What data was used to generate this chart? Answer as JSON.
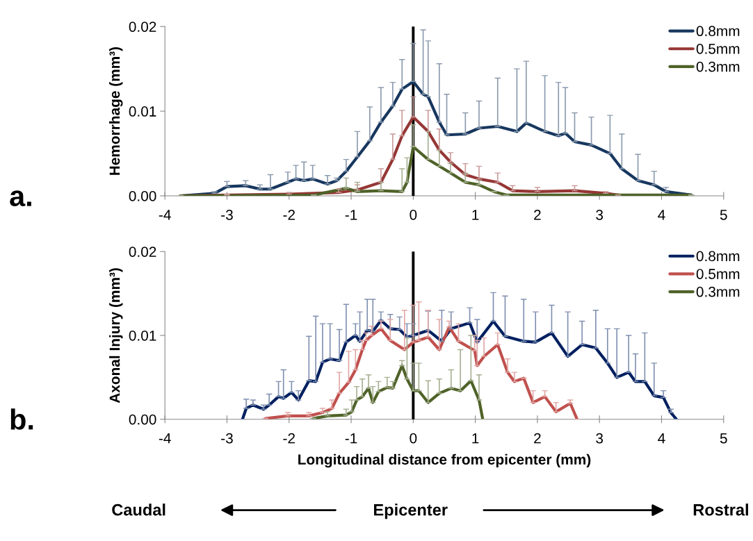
{
  "chart_data": [
    {
      "type": "line",
      "ylabel": "Hemorrhage (mm³)",
      "annotations": [
        "a."
      ],
      "legend": "top right",
      "grid": false,
      "marker": "none",
      "line_style": "solid",
      "xlim": [
        -4,
        5
      ],
      "xticks": [
        -4,
        -3,
        -2,
        -1,
        0,
        1,
        2,
        3,
        4,
        5
      ],
      "ylim": [
        0,
        0.02
      ],
      "yticks": [
        {
          "value": 0,
          "label": "0.00"
        },
        {
          "value": 0.01,
          "label": "0.01"
        },
        {
          "value": 0.02,
          "label": "0.02"
        }
      ],
      "ref_lines": [
        {
          "axis": "x",
          "value": 0,
          "label": null,
          "color": "#000000"
        }
      ],
      "series": [
        {
          "name": "0.8mm",
          "color": "#17375e",
          "x": [
            -3.75,
            -3.2,
            -3.0,
            -2.7,
            -2.47,
            -2.3,
            -2.02,
            -1.89,
            -1.76,
            -1.62,
            -1.38,
            -1.23,
            -1.08,
            -0.9,
            -0.7,
            -0.52,
            -0.33,
            -0.18,
            0,
            0.16,
            0.24,
            0.42,
            0.54,
            0.84,
            1.06,
            1.36,
            1.67,
            1.82,
            2.12,
            2.34,
            2.45,
            2.6,
            2.87,
            3.17,
            3.36,
            3.62,
            3.88,
            4.07,
            4.48
          ],
          "values": [
            0,
            0.0003,
            0.0011,
            0.0012,
            0.0008,
            0.0008,
            0.0016,
            0.002,
            0.0018,
            0.002,
            0.0014,
            0.0018,
            0.0029,
            0.0046,
            0.0065,
            0.0087,
            0.0106,
            0.0126,
            0.0135,
            0.012,
            0.0117,
            0.0087,
            0.0072,
            0.0073,
            0.008,
            0.0082,
            0.0076,
            0.0086,
            0.0076,
            0.0071,
            0.0074,
            0.0064,
            0.006,
            0.005,
            0.0032,
            0.0018,
            0.0013,
            0.0005,
            0.0001
          ],
          "errors": [
            [
              0,
              0
            ],
            [
              0.0003,
              0.0005
            ],
            [
              0.0011,
              0.0017
            ],
            [
              0.0012,
              0.0018
            ],
            [
              0.0008,
              0.0013
            ],
            [
              0.0008,
              0.0025
            ],
            [
              0.0016,
              0.0028
            ],
            [
              0.002,
              0.0036
            ],
            [
              0.0018,
              0.004
            ],
            [
              0.002,
              0.0036
            ],
            [
              0.0014,
              0.0024
            ],
            [
              0.0018,
              0.0021
            ],
            [
              0.0029,
              0.0043
            ],
            [
              0.0046,
              0.0076
            ],
            [
              0.0065,
              0.0105
            ],
            [
              0.0087,
              0.0128
            ],
            [
              0.0106,
              0.0134
            ],
            [
              0.0126,
              0.0161
            ],
            [
              0.0135,
              0.018
            ],
            [
              0.012,
              0.0196
            ],
            [
              0.0117,
              0.0183
            ],
            [
              0.0087,
              0.0156
            ],
            [
              0.0072,
              0.012
            ],
            [
              0.0073,
              0.0098
            ],
            [
              0.008,
              0.0112
            ],
            [
              0.0082,
              0.0139
            ],
            [
              0.0076,
              0.015
            ],
            [
              0.0086,
              0.0159
            ],
            [
              0.0076,
              0.0142
            ],
            [
              0.0071,
              0.0134
            ],
            [
              0.0074,
              0.0128
            ],
            [
              0.0064,
              0.0098
            ],
            [
              0.006,
              0.0093
            ],
            [
              0.005,
              0.0095
            ],
            [
              0.0032,
              0.0073
            ],
            [
              0.0018,
              0.0049
            ],
            [
              0.0013,
              0.0029
            ],
            [
              0.0005,
              0.001
            ],
            [
              0.0001,
              0.0001
            ]
          ]
        },
        {
          "name": "0.5mm",
          "color": "#953735",
          "x": [
            -3.75,
            -3.0,
            -2.0,
            -1.2,
            -0.9,
            -0.52,
            -0.33,
            -0.18,
            0,
            0.24,
            0.42,
            0.6,
            0.84,
            1.06,
            1.36,
            1.6,
            2.0,
            2.6,
            3.1,
            3.3
          ],
          "values": [
            0,
            0.0001,
            0.0002,
            0.0004,
            0.0007,
            0.0016,
            0.0043,
            0.0071,
            0.0093,
            0.0076,
            0.0054,
            0.004,
            0.0025,
            0.002,
            0.0016,
            0.0006,
            0.0005,
            0.0006,
            0.0003,
            0.0001
          ],
          "errors": [
            [
              0,
              0
            ],
            [
              0.0001,
              0.0002
            ],
            [
              0.0002,
              0.0004
            ],
            [
              0.0004,
              0.0008
            ],
            [
              0.0007,
              0.0013
            ],
            [
              0.0016,
              0.0032
            ],
            [
              0.0043,
              0.0073
            ],
            [
              0.0071,
              0.0101
            ],
            [
              0.0093,
              0.0117
            ],
            [
              0.0076,
              0.0101
            ],
            [
              0.0054,
              0.0079
            ],
            [
              0.004,
              0.0051
            ],
            [
              0.0025,
              0.0038
            ],
            [
              0.002,
              0.0035
            ],
            [
              0.0016,
              0.0027
            ],
            [
              0.0006,
              0.0012
            ],
            [
              0.0005,
              0.001
            ],
            [
              0.0006,
              0.0012
            ],
            [
              0.0003,
              0.0005
            ],
            [
              0.0001,
              0.0001
            ]
          ]
        },
        {
          "name": "0.3mm",
          "color": "#4f6228",
          "x": [
            -3.75,
            -1.6,
            -1.08,
            -0.9,
            -0.52,
            -0.18,
            -0.1,
            0,
            0.24,
            0.42,
            0.6,
            0.84,
            1.06,
            1.3,
            1.5,
            4.48
          ],
          "values": [
            0,
            0.0001,
            0.0009,
            0.0005,
            0.0006,
            0.0005,
            0.0016,
            0.0058,
            0.0043,
            0.0035,
            0.0027,
            0.0016,
            0.0013,
            0.0005,
            0.0001,
            0.0001
          ],
          "errors": [
            [
              0,
              0
            ],
            [
              0.0001,
              0.0001
            ],
            [
              0.0009,
              0.0021
            ],
            [
              0.0005,
              0.0016
            ],
            [
              0.0006,
              0.0016
            ],
            [
              0.0005,
              0.0032
            ],
            [
              0.0016,
              0.0045
            ],
            [
              0.0058,
              0.0084
            ],
            [
              0.0043,
              0.0076
            ],
            [
              0.0035,
              0.0054
            ],
            [
              0.0027,
              0.0038
            ],
            [
              0.0016,
              0.0027
            ],
            [
              0.0013,
              0.0018
            ],
            [
              0.0005,
              0.0005
            ],
            [
              0.0001,
              0.0001
            ],
            [
              0.0001,
              0.0001
            ]
          ]
        }
      ]
    },
    {
      "type": "line",
      "ylabel": "Axonal Injury (mm³)",
      "xlabel": "Longitudinal distance from epicenter (mm)",
      "annotations": [
        "b.",
        "Caudal",
        "Epicenter",
        "Rostral"
      ],
      "legend": "top right",
      "grid": false,
      "marker": "none",
      "line_style": "solid",
      "xlim": [
        -4,
        5
      ],
      "xticks": [
        -4,
        -3,
        -2,
        -1,
        0,
        1,
        2,
        3,
        4,
        5
      ],
      "ylim": [
        0,
        0.02
      ],
      "yticks": [
        {
          "value": 0,
          "label": "0.00"
        },
        {
          "value": 0.01,
          "label": "0.01"
        },
        {
          "value": 0.02,
          "label": "0.02"
        }
      ],
      "ref_lines": [
        {
          "axis": "x",
          "value": 0,
          "label": null,
          "color": "#000000"
        }
      ],
      "series": [
        {
          "name": "0.8mm",
          "color": "#002060",
          "x": [
            -2.75,
            -2.69,
            -2.58,
            -2.41,
            -2.32,
            -2.17,
            -2.09,
            -1.96,
            -1.85,
            -1.68,
            -1.57,
            -1.46,
            -1.34,
            -1.19,
            -1.08,
            -0.93,
            -0.86,
            -0.74,
            -0.65,
            -0.52,
            -0.37,
            -0.22,
            -0.1,
            0,
            0.24,
            0.46,
            0.61,
            0.91,
            1.03,
            1.29,
            1.48,
            1.78,
            1.97,
            2.23,
            2.49,
            2.72,
            2.94,
            3.13,
            3.28,
            3.47,
            3.58,
            3.73,
            3.88,
            4.03,
            4.15,
            4.24
          ],
          "values": [
            0,
            0.0013,
            0.0017,
            0.0012,
            0.0017,
            0.0027,
            0.0025,
            0.0032,
            0.0023,
            0.0046,
            0.0045,
            0.0068,
            0.0072,
            0.007,
            0.0092,
            0.01,
            0.0093,
            0.0106,
            0.0105,
            0.0118,
            0.0108,
            0.0107,
            0.0098,
            0.01,
            0.0106,
            0.0093,
            0.0108,
            0.0115,
            0.0092,
            0.0117,
            0.0099,
            0.0093,
            0.0092,
            0.0103,
            0.0075,
            0.0089,
            0.0085,
            0.0067,
            0.005,
            0.0056,
            0.0045,
            0.0045,
            0.0028,
            0.0026,
            0.0008,
            0
          ],
          "errors": [
            [
              0,
              0
            ],
            [
              0.0013,
              0.0024
            ],
            [
              0.0017,
              0.0023
            ],
            [
              0.0012,
              0.0017
            ],
            [
              0.0017,
              0.003
            ],
            [
              0.0027,
              0.0045
            ],
            [
              0.0025,
              0.0059
            ],
            [
              0.0032,
              0.0045
            ],
            [
              0.0023,
              0.0034
            ],
            [
              0.0046,
              0.0099
            ],
            [
              0.0045,
              0.0123
            ],
            [
              0.0068,
              0.0114
            ],
            [
              0.0072,
              0.0114
            ],
            [
              0.007,
              0.0107
            ],
            [
              0.0092,
              0.0137
            ],
            [
              0.01,
              0.0114
            ],
            [
              0.0093,
              0.0128
            ],
            [
              0.0106,
              0.0143
            ],
            [
              0.0105,
              0.0143
            ],
            [
              0.0118,
              0.0128
            ],
            [
              0.0108,
              0.0125
            ],
            [
              0.0107,
              0.0122
            ],
            [
              0.0098,
              0.0114
            ],
            [
              0.01,
              0.0114
            ],
            [
              0.0106,
              0.0129
            ],
            [
              0.0093,
              0.013
            ],
            [
              0.0108,
              0.0128
            ],
            [
              0.0115,
              0.0133
            ],
            [
              0.0092,
              0.0119
            ],
            [
              0.0117,
              0.0151
            ],
            [
              0.0099,
              0.0147
            ],
            [
              0.0093,
              0.0143
            ],
            [
              0.0092,
              0.0128
            ],
            [
              0.0103,
              0.0136
            ],
            [
              0.0075,
              0.0128
            ],
            [
              0.0089,
              0.0117
            ],
            [
              0.0085,
              0.013
            ],
            [
              0.0067,
              0.0108
            ],
            [
              0.005,
              0.0108
            ],
            [
              0.0056,
              0.01
            ],
            [
              0.0045,
              0.0078
            ],
            [
              0.0045,
              0.0103
            ],
            [
              0.0028,
              0.0067
            ],
            [
              0.0026,
              0.0034
            ],
            [
              0.0008,
              0.0012
            ],
            [
              0,
              0
            ]
          ]
        },
        {
          "name": "0.5mm",
          "color": "#c0504d",
          "x": [
            -2.38,
            -2.02,
            -1.68,
            -1.46,
            -1.31,
            -1.19,
            -1.04,
            -0.93,
            -0.82,
            -0.76,
            -0.67,
            -0.52,
            -0.37,
            -0.14,
            0,
            0.09,
            0.24,
            0.42,
            0.58,
            0.73,
            0.99,
            1.03,
            1.14,
            1.36,
            1.52,
            1.63,
            1.78,
            1.93,
            2.12,
            2.3,
            2.53,
            2.64
          ],
          "values": [
            0.0001,
            0.0004,
            0.0004,
            0.0008,
            0.0013,
            0.0031,
            0.0044,
            0.0059,
            0.0083,
            0.0094,
            0.01,
            0.0108,
            0.0094,
            0.0083,
            0.0092,
            0.0094,
            0.0098,
            0.0083,
            0.011,
            0.0093,
            0.0082,
            0.0064,
            0.0075,
            0.0089,
            0.0056,
            0.0045,
            0.0049,
            0.002,
            0.0027,
            0.0009,
            0.0019,
            0
          ],
          "errors": [
            [
              0.0001,
              0.0001
            ],
            [
              0.0004,
              0.0008
            ],
            [
              0.0004,
              0.0008
            ],
            [
              0.0008,
              0.0013
            ],
            [
              0.0013,
              0.0023
            ],
            [
              0.0031,
              0.0056
            ],
            [
              0.0044,
              0.0081
            ],
            [
              0.0059,
              0.0083
            ],
            [
              0.0083,
              0.0094
            ],
            [
              0.0094,
              0.0103
            ],
            [
              0.01,
              0.0111
            ],
            [
              0.0108,
              0.0117
            ],
            [
              0.0094,
              0.0119
            ],
            [
              0.0083,
              0.013
            ],
            [
              0.0092,
              0.0136
            ],
            [
              0.0094,
              0.014
            ],
            [
              0.0098,
              0.013
            ],
            [
              0.0083,
              0.0119
            ],
            [
              0.011,
              0.0117
            ],
            [
              0.0093,
              0.0114
            ],
            [
              0.0082,
              0.01
            ],
            [
              0.0064,
              0.0094
            ],
            [
              0.0075,
              0.0097
            ],
            [
              0.0089,
              0.0103
            ],
            [
              0.0056,
              0.0072
            ],
            [
              0.0045,
              0.0056
            ],
            [
              0.0049,
              0.0049
            ],
            [
              0.002,
              0.0034
            ],
            [
              0.0027,
              0.0034
            ],
            [
              0.0009,
              0.002
            ],
            [
              0.0019,
              0.0023
            ],
            [
              0,
              0
            ]
          ]
        },
        {
          "name": "0.3mm",
          "color": "#4f6228",
          "x": [
            -1.61,
            -1.38,
            -1.08,
            -0.99,
            -0.91,
            -0.82,
            -0.72,
            -0.65,
            -0.56,
            -0.42,
            -0.33,
            -0.18,
            -0.1,
            0,
            0.09,
            0.24,
            0.42,
            0.61,
            0.76,
            0.93,
            1.06,
            1.12
          ],
          "values": [
            0.0001,
            0.0004,
            0.0005,
            0.0009,
            0.0023,
            0.0027,
            0.0037,
            0.002,
            0.0033,
            0.0038,
            0.0037,
            0.0064,
            0.0048,
            0.0034,
            0.0034,
            0.002,
            0.0031,
            0.0037,
            0.0034,
            0.0046,
            0.0023,
            0
          ],
          "errors": [
            [
              0.0001,
              0.0001
            ],
            [
              0.0004,
              0.0009
            ],
            [
              0.0005,
              0.0012
            ],
            [
              0.0009,
              0.0023
            ],
            [
              0.0023,
              0.0039
            ],
            [
              0.0027,
              0.0048
            ],
            [
              0.0037,
              0.0053
            ],
            [
              0.002,
              0.0039
            ],
            [
              0.0033,
              0.0045
            ],
            [
              0.0038,
              0.005
            ],
            [
              0.0037,
              0.0045
            ],
            [
              0.0064,
              0.007
            ],
            [
              0.0048,
              0.0097
            ],
            [
              0.0034,
              0.0067
            ],
            [
              0.0034,
              0.0067
            ],
            [
              0.002,
              0.0046
            ],
            [
              0.0031,
              0.0048
            ],
            [
              0.0037,
              0.0059
            ],
            [
              0.0034,
              0.0083
            ],
            [
              0.0046,
              0.01
            ],
            [
              0.0023,
              0.0053
            ],
            [
              0,
              0
            ]
          ]
        }
      ]
    }
  ]
}
